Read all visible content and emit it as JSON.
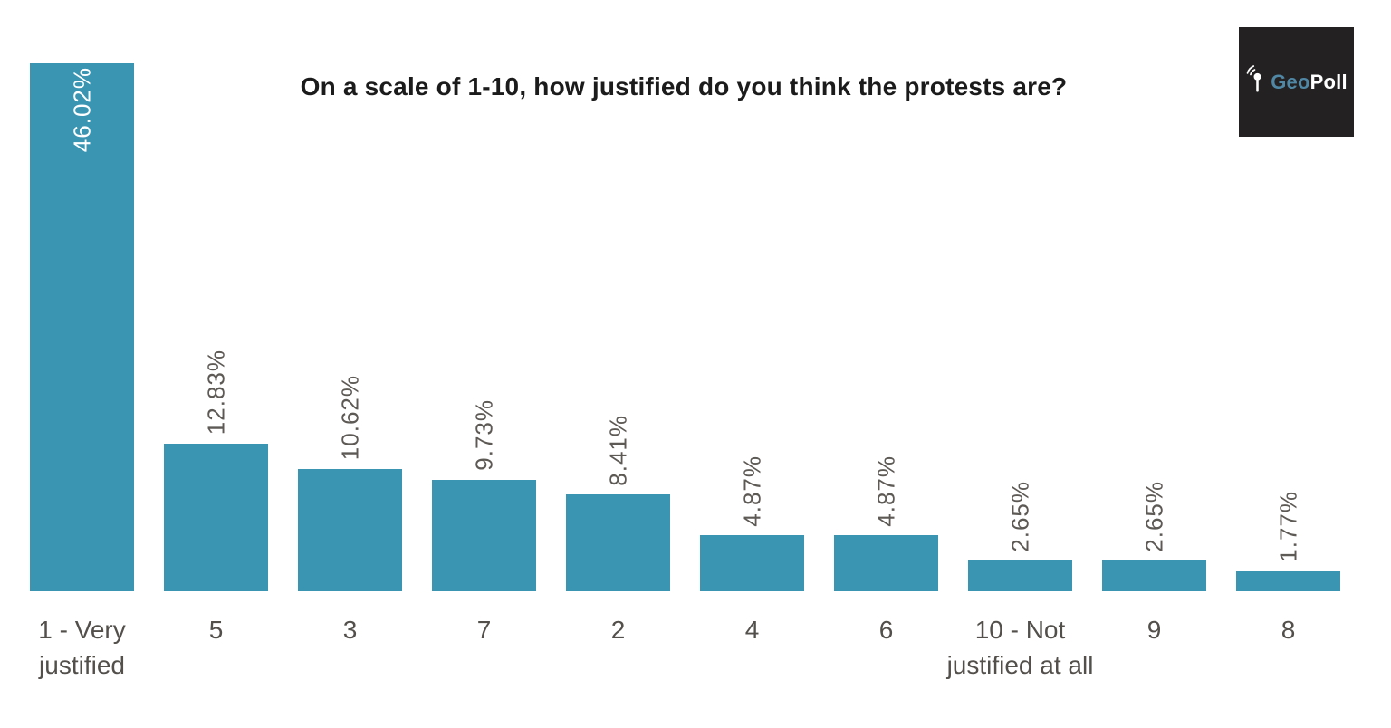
{
  "title": "On a scale of 1-10, how justified do you think the protests are?",
  "logo": {
    "geo": "Geo",
    "poll": "Poll",
    "icon": "geopoll-pin-icon",
    "background_color": "#232121",
    "geo_color": "#4f87a5",
    "poll_color": "#ffffff"
  },
  "chart_data": {
    "type": "bar",
    "title": "On a scale of 1-10, how justified do you think the protests are?",
    "categories": [
      "1 - Very justified",
      "5",
      "3",
      "7",
      "2",
      "4",
      "6",
      "10 - Not justified at all",
      "9",
      "8"
    ],
    "values": [
      46.02,
      12.83,
      10.62,
      9.73,
      8.41,
      4.87,
      4.87,
      2.65,
      2.65,
      1.77
    ],
    "value_labels": [
      "46.02%",
      "12.83%",
      "10.62%",
      "9.73%",
      "8.41%",
      "4.87%",
      "4.87%",
      "2.65%",
      "2.65%",
      "1.77%"
    ],
    "xlabel": "",
    "ylabel": "",
    "ylim": [
      0,
      46.02
    ],
    "grid": false,
    "legend": "none",
    "value_label_rotation": -90,
    "bar_color": "#3a95b3",
    "value_label_color": "#5d5955",
    "first_label_inside_color": "#ffffff",
    "axis_label_color": "#53504c"
  }
}
